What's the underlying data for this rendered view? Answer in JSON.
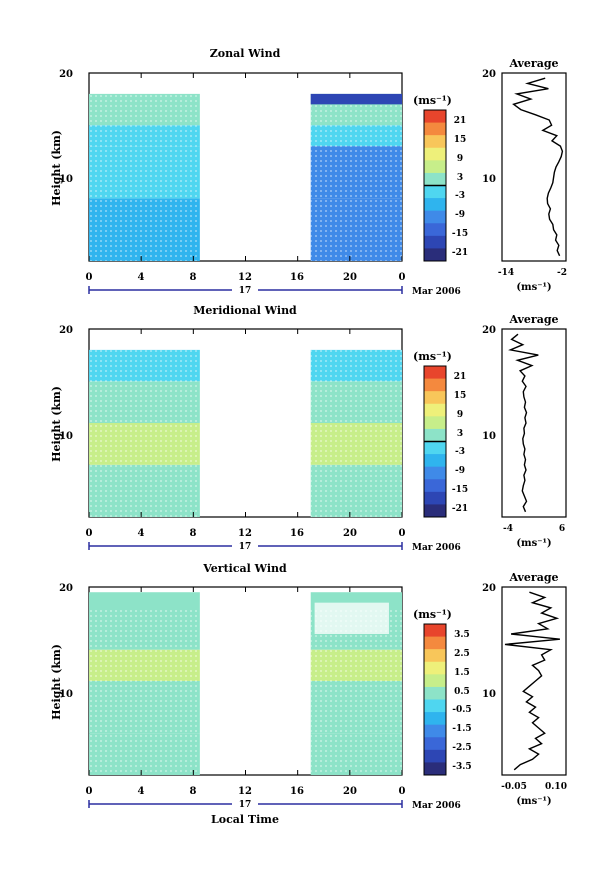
{
  "page": {
    "x_axis_label": "Local Time",
    "colorbar_unit": "(ms⁻¹)",
    "profile_unit": "(ms⁻¹)"
  },
  "colors": {
    "scale": [
      "#2a2d7a",
      "#2d46b4",
      "#3a67d8",
      "#3f8ae8",
      "#2fb4ee",
      "#4fd6f0",
      "#8de3c8",
      "#c7ee8a",
      "#eef07a",
      "#f8c65a",
      "#f4893e",
      "#e8452c"
    ]
  },
  "chart_data": [
    {
      "type": "heatmap",
      "title": "Zonal Wind",
      "ylabel": "Height (km)",
      "y_ticks": [
        "20",
        "10"
      ],
      "ylim": [
        2,
        20
      ],
      "x_ticks": [
        "0",
        "4",
        "8",
        "12",
        "16",
        "20",
        "0"
      ],
      "xlim": [
        0,
        24
      ],
      "day_label": "17",
      "date_label": "Mar 2006",
      "data_blocks": [
        [
          0,
          8.5
        ],
        [
          17,
          24
        ]
      ],
      "colorbar": {
        "ticks": [
          "21",
          "15",
          "9",
          "3",
          "-3",
          "-9",
          "-15",
          "-21"
        ],
        "range": [
          -24,
          24
        ],
        "zero_line": 0
      },
      "profile": {
        "title": "Average",
        "y_ticks": [
          "20",
          "10"
        ],
        "x_ticks": [
          "-14",
          "-2"
        ],
        "xlim": [
          -16,
          0
        ],
        "heights": [
          2.5,
          3,
          3.5,
          4,
          4.5,
          5,
          5.5,
          6,
          6.5,
          7,
          7.5,
          8,
          8.5,
          9,
          9.5,
          10,
          10.5,
          11,
          11.5,
          12,
          12.5,
          13,
          13.5,
          14,
          14.5,
          15,
          15.5,
          16,
          16.5,
          17,
          17.5,
          18,
          18.5,
          19,
          19.5
        ],
        "values": [
          -1.6,
          -2.2,
          -1.8,
          -2.6,
          -2.3,
          -3.1,
          -3.3,
          -4.1,
          -4.3,
          -3.9,
          -4.6,
          -4.7,
          -4.4,
          -3.8,
          -3.3,
          -3.1,
          -2.9,
          -2.5,
          -1.8,
          -1.2,
          -0.9,
          -1.4,
          -3.5,
          -2.3,
          -5.8,
          -3.6,
          -4.2,
          -7.6,
          -11.3,
          -13.1,
          -8.8,
          -12.3,
          -4.4,
          -9.6,
          -5.2
        ]
      }
    },
    {
      "type": "heatmap",
      "title": "Meridional Wind",
      "ylabel": "Height (km)",
      "y_ticks": [
        "20",
        "10"
      ],
      "ylim": [
        2,
        20
      ],
      "x_ticks": [
        "0",
        "4",
        "8",
        "12",
        "16",
        "20",
        "0"
      ],
      "xlim": [
        0,
        24
      ],
      "day_label": "17",
      "date_label": "Mar 2006",
      "data_blocks": [
        [
          0,
          8.5
        ],
        [
          17,
          24
        ]
      ],
      "colorbar": {
        "ticks": [
          "21",
          "15",
          "9",
          "3",
          "-3",
          "-9",
          "-15",
          "-21"
        ],
        "range": [
          -24,
          24
        ],
        "zero_line": 0
      },
      "profile": {
        "title": "Average",
        "y_ticks": [
          "20",
          "10"
        ],
        "x_ticks": [
          "-4",
          "6"
        ],
        "xlim": [
          -5,
          7
        ],
        "heights": [
          2.5,
          3,
          3.5,
          4,
          4.5,
          5,
          5.5,
          6,
          6.5,
          7,
          7.5,
          8,
          8.5,
          9,
          9.5,
          10,
          10.5,
          11,
          11.5,
          12,
          12.5,
          13,
          13.5,
          14,
          14.5,
          15,
          15.5,
          16,
          16.5,
          17,
          17.5,
          18,
          18.5,
          19,
          19.5
        ],
        "values": [
          -0.6,
          -1.0,
          -0.4,
          -0.8,
          -1.2,
          -1.0,
          -0.7,
          -0.9,
          -0.5,
          -0.8,
          -0.6,
          -0.9,
          -0.7,
          -1.0,
          -1.1,
          -0.8,
          -0.9,
          -0.5,
          -0.7,
          -0.4,
          -0.8,
          -0.6,
          -0.9,
          -1.0,
          -0.5,
          -1.2,
          -0.7,
          -1.6,
          0.6,
          -2.1,
          1.8,
          -3.4,
          -1.1,
          -3.2,
          -2.0
        ]
      }
    },
    {
      "type": "heatmap",
      "title": "Vertical Wind",
      "ylabel": "Height (km)",
      "y_ticks": [
        "20",
        "10"
      ],
      "ylim": [
        2,
        20
      ],
      "x_ticks": [
        "0",
        "4",
        "8",
        "12",
        "16",
        "20",
        "0"
      ],
      "xlim": [
        0,
        24
      ],
      "day_label": "17",
      "date_label": "Mar 2006",
      "data_blocks": [
        [
          0,
          8.5
        ],
        [
          17,
          24
        ]
      ],
      "colorbar": {
        "ticks": [
          "3.5",
          "2.5",
          "1.5",
          "0.5",
          "-0.5",
          "-1.5",
          "-2.5",
          "-3.5"
        ],
        "range": [
          -4,
          4
        ],
        "zero_line": null
      },
      "profile": {
        "title": "Average",
        "y_ticks": [
          "20",
          "10"
        ],
        "x_ticks": [
          "-0.05",
          "0.10"
        ],
        "xlim": [
          -0.07,
          0.14
        ],
        "heights": [
          2.5,
          3,
          3.5,
          4,
          4.5,
          5,
          5.5,
          6,
          6.5,
          7,
          7.5,
          8,
          8.5,
          9,
          9.5,
          10,
          10.5,
          11,
          11.5,
          12,
          12.5,
          13,
          13.5,
          14,
          14.5,
          15,
          15.5,
          16,
          16.5,
          17,
          17.5,
          18,
          18.5,
          19,
          19.5
        ],
        "values": [
          -0.03,
          -0.01,
          0.03,
          0.05,
          0.02,
          0.06,
          0.04,
          0.07,
          0.05,
          0.03,
          0.05,
          0.02,
          0.04,
          0.01,
          0.03,
          0.0,
          0.02,
          0.04,
          0.06,
          0.05,
          0.03,
          0.07,
          0.06,
          0.09,
          -0.06,
          0.12,
          -0.04,
          0.08,
          0.05,
          0.11,
          0.06,
          0.09,
          0.03,
          0.07,
          0.02
        ]
      }
    }
  ]
}
